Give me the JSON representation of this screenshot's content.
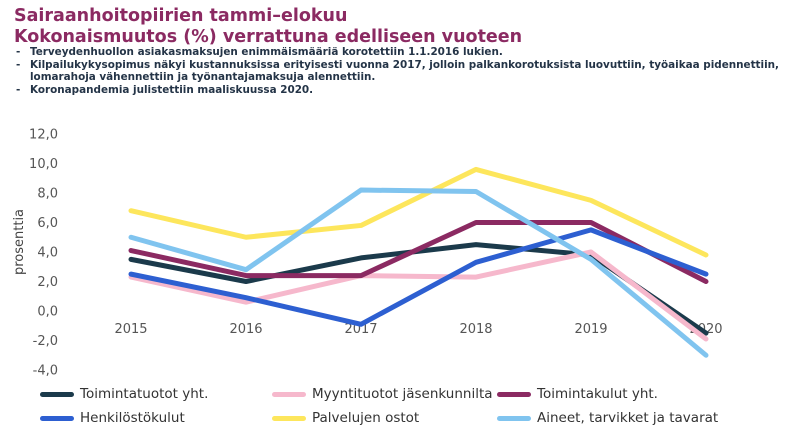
{
  "title_line1": "Sairaanhoitopiirien tammi–elokuu",
  "title_line2": "Kokonaismuutos (%) verrattuna edelliseen vuoteen",
  "notes": [
    "Terveydenhuollon asiakasmaksujen enimmäismääriä korotettiin 1.1.2016 lukien.",
    "Kilpailukykysopimus näkyi kustannuksissa erityisesti vuonna 2017, jolloin palkankorotuksista luovuttiin, työaikaa pidennettiin, lomarahoja vähennettiin ja työnantajamaksuja alennettiin.",
    "Koronapandemia julistettiin maaliskuussa 2020."
  ],
  "chart_data": {
    "type": "line",
    "x": [
      "2015",
      "2016",
      "2017",
      "2018",
      "2019",
      "2020"
    ],
    "ylabel": "prosenttia",
    "ylim": [
      -4,
      12
    ],
    "yticks": [
      "12,0",
      "10,0",
      "8,0",
      "6,0",
      "4,0",
      "2,0",
      "0,0",
      "-2,0",
      "-4,0"
    ],
    "legend": "bottom",
    "grid": false,
    "series": [
      {
        "name": "Toimintatuotot yht.",
        "color": "#1b3a4b",
        "values": [
          3.5,
          2.0,
          3.6,
          4.5,
          3.8,
          -1.5
        ]
      },
      {
        "name": "Myyntituotot jäsenkunnilta",
        "color": "#f6b8cc",
        "values": [
          2.3,
          0.6,
          2.4,
          2.3,
          4.0,
          -1.9
        ]
      },
      {
        "name": "Toimintakulut yht.",
        "color": "#8b2a62",
        "values": [
          4.1,
          2.4,
          2.4,
          6.0,
          6.0,
          2.0
        ]
      },
      {
        "name": "Henkilöstökulut",
        "color": "#2d5fd1",
        "values": [
          2.5,
          0.9,
          -0.9,
          3.3,
          5.5,
          2.5
        ]
      },
      {
        "name": "Palvelujen ostot",
        "color": "#fde65c",
        "values": [
          6.8,
          5.0,
          5.8,
          9.6,
          7.5,
          3.8
        ]
      },
      {
        "name": "Aineet, tarvikket ja tavarat",
        "color": "#80c4ef",
        "values": [
          5.0,
          2.8,
          8.2,
          8.1,
          3.5,
          -3.0
        ]
      }
    ]
  }
}
